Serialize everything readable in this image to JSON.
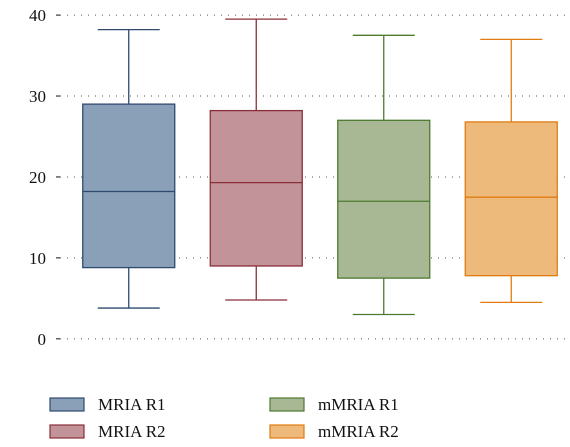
{
  "chart_data": {
    "type": "box",
    "title": "",
    "xlabel": "",
    "ylabel": "",
    "ylim": [
      -2,
      41
    ],
    "yticks": [
      0,
      10,
      20,
      30,
      40
    ],
    "grid": "y-dotted",
    "legend_position": "bottom",
    "series": [
      {
        "name": "MRIA R1",
        "min": 3.8,
        "q1": 8.8,
        "median": 18.2,
        "q3": 29.0,
        "max": 38.2,
        "fill": "#8aa0b8",
        "stroke": "#2f4a6e"
      },
      {
        "name": "MRIA R2",
        "min": 4.8,
        "q1": 9.0,
        "median": 19.3,
        "q3": 28.2,
        "max": 39.5,
        "fill": "#c29398",
        "stroke": "#8a2e3a"
      },
      {
        "name": "mMRIA R1",
        "min": 3.0,
        "q1": 7.5,
        "median": 17.0,
        "q3": 27.0,
        "max": 37.5,
        "fill": "#a8b894",
        "stroke": "#4d7a30"
      },
      {
        "name": "mMRIA R2",
        "min": 4.5,
        "q1": 7.8,
        "median": 17.5,
        "q3": 26.8,
        "max": 37.0,
        "fill": "#edba7c",
        "stroke": "#e07c10"
      }
    ]
  }
}
